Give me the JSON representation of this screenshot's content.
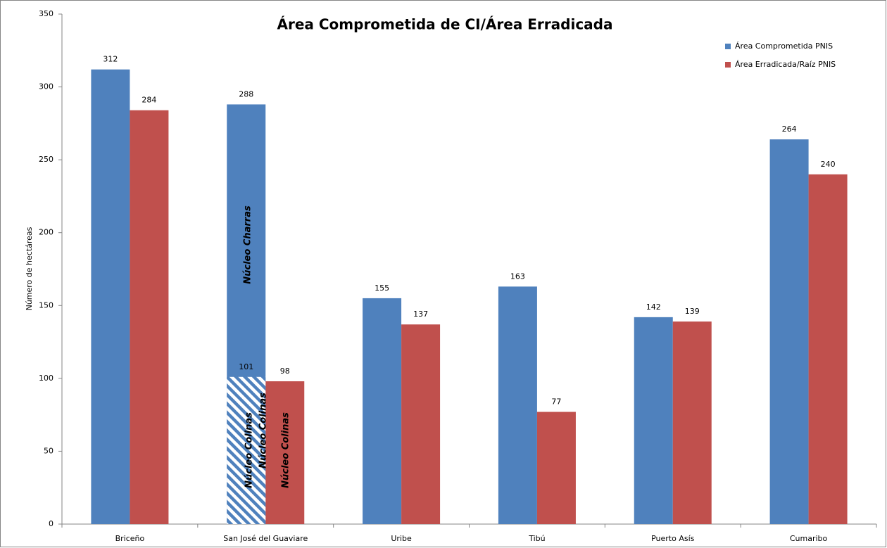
{
  "chart_data": {
    "type": "bar",
    "title": "Área Comprometida de CI/Área Erradicada",
    "y_label": "Número de hectáreas",
    "categories": [
      "Briceño",
      "San José del Guaviare",
      "Uribe",
      "Tibú",
      "Puerto Asís",
      "Cumaribo"
    ],
    "series": [
      {
        "name": "Área Comprometida PNIS",
        "color": "#4f81bd",
        "values": [
          312,
          288,
          155,
          163,
          142,
          264
        ]
      },
      {
        "name": "Área Erradicada/Raíz PNIS",
        "color": "#c0504d",
        "values": [
          284,
          98,
          137,
          77,
          139,
          240
        ]
      }
    ],
    "overlay_values": [
      null,
      101,
      null,
      null,
      null,
      null
    ],
    "annotations": [
      "Núcleo Charras",
      "Núcleo Colinas",
      "Núcleo Colinas",
      "Núcleo Colinas"
    ],
    "ylim": [
      0,
      350
    ],
    "yticks": [
      0,
      50,
      100,
      150,
      200,
      250,
      300,
      350
    ],
    "grid": false,
    "legend": "top-right"
  }
}
